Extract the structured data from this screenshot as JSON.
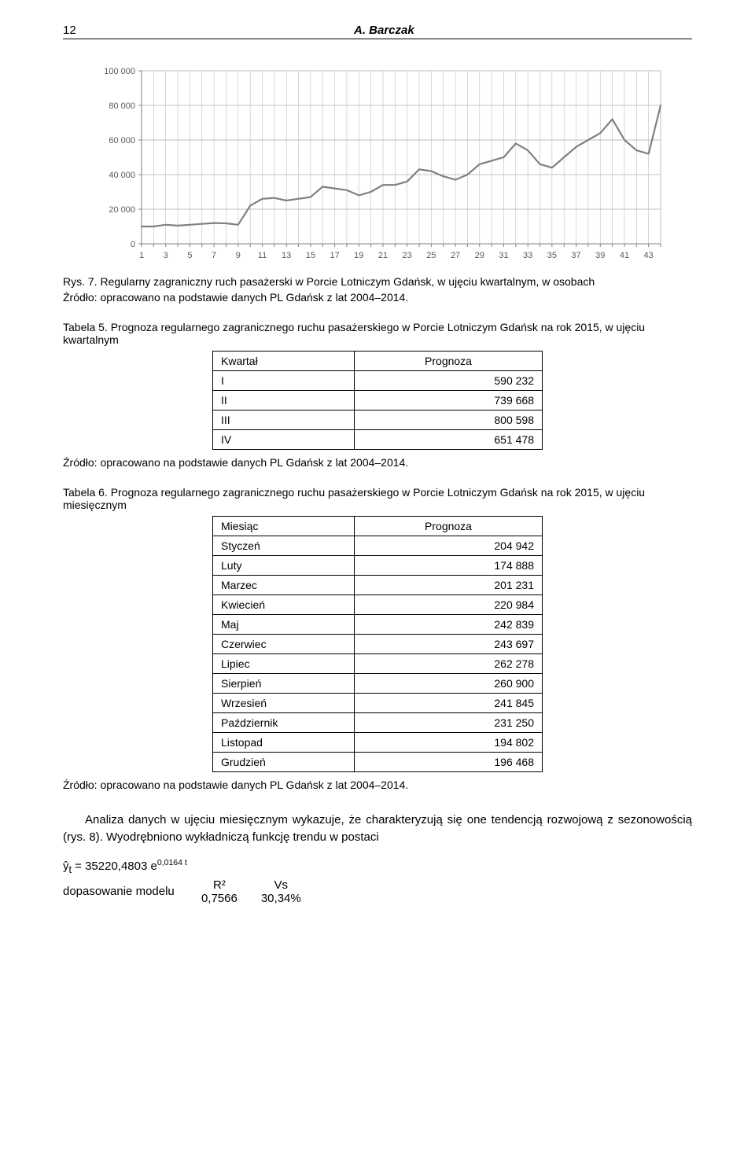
{
  "header": {
    "page_number": "12",
    "author": "A. Barczak"
  },
  "chart": {
    "type": "line",
    "ylim": [
      0,
      100000
    ],
    "ytick_step": 20000,
    "ytick_labels": [
      "0",
      "20 000",
      "40 000",
      "60 000",
      "80 000",
      "100 000"
    ],
    "xtick_step": 2,
    "xticks": [
      1,
      3,
      5,
      7,
      9,
      11,
      13,
      15,
      17,
      19,
      21,
      23,
      25,
      27,
      29,
      31,
      33,
      35,
      37,
      39,
      41,
      43
    ],
    "n_points": 44,
    "values": [
      10000,
      10000,
      11000,
      10500,
      11000,
      11500,
      12000,
      11800,
      11000,
      22000,
      26000,
      26500,
      25000,
      26000,
      27000,
      33000,
      32000,
      31000,
      28000,
      30000,
      34000,
      34000,
      36000,
      43000,
      42000,
      39000,
      37000,
      40000,
      46000,
      48000,
      50000,
      58000,
      54000,
      46000,
      44000,
      50000,
      56000,
      60000,
      64000,
      72000,
      60000,
      54000,
      52000,
      80000
    ],
    "line_color": "#808080",
    "line_width": 2.2,
    "grid_color": "#bfbfbf",
    "background_color": "#ffffff",
    "axis_color": "#808080",
    "tick_fontsize": 11,
    "tick_color": "#595959"
  },
  "fig_caption": "Rys. 7. Regularny zagraniczny ruch pasażerski w Porcie Lotniczym Gdańsk, w ujęciu kwartalnym, w osobach",
  "fig_source": "Źródło: opracowano na podstawie danych PL Gdańsk z lat 2004–2014.",
  "table5": {
    "caption": "Tabela 5. Prognoza regularnego zagranicznego ruchu pasażerskiego w Porcie Lotniczym Gdańsk na rok 2015, w ujęciu kwartalnym",
    "col1": "Kwartał",
    "col2": "Prognoza",
    "rows": [
      {
        "k": "I",
        "v": "590 232"
      },
      {
        "k": "II",
        "v": "739 668"
      },
      {
        "k": "III",
        "v": "800 598"
      },
      {
        "k": "IV",
        "v": "651 478"
      }
    ],
    "source": "Źródło: opracowano na podstawie danych PL Gdańsk z lat 2004–2014."
  },
  "table6": {
    "caption": "Tabela 6. Prognoza regularnego zagranicznego ruchu pasażerskiego w Porcie Lotniczym Gdańsk na rok 2015, w ujęciu miesięcznym",
    "col1": "Miesiąc",
    "col2": "Prognoza",
    "rows": [
      {
        "k": "Styczeń",
        "v": "204 942"
      },
      {
        "k": "Luty",
        "v": "174 888"
      },
      {
        "k": "Marzec",
        "v": "201 231"
      },
      {
        "k": "Kwiecień",
        "v": "220 984"
      },
      {
        "k": "Maj",
        "v": "242 839"
      },
      {
        "k": "Czerwiec",
        "v": "243 697"
      },
      {
        "k": "Lipiec",
        "v": "262 278"
      },
      {
        "k": "Sierpień",
        "v": "260 900"
      },
      {
        "k": "Wrzesień",
        "v": "241 845"
      },
      {
        "k": "Październik",
        "v": "231 250"
      },
      {
        "k": "Listopad",
        "v": "194 802"
      },
      {
        "k": "Grudzień",
        "v": "196 468"
      }
    ],
    "source": "Źródło: opracowano na podstawie danych PL Gdańsk z lat 2004–2014."
  },
  "analysis_para": "Analiza danych w ujęciu miesięcznym wykazuje, że charakteryzują się one tendencją rozwojową z sezonowością (rys. 8). Wyodrębniono wykładniczą funkcję trendu w postaci",
  "formula_html": "ŷ<sub>t</sub> = 35220,4803 e<sup>0,0164 t</sup>",
  "model": {
    "label": "dopasowanie modelu",
    "r2_sym": "R²",
    "r2_val": "0,7566",
    "vs_sym": "Vs",
    "vs_val": "30,34%"
  }
}
